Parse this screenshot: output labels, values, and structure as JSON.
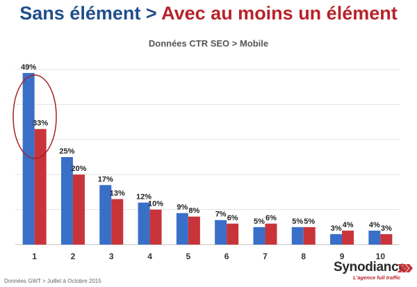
{
  "header": {
    "title_part1": "Sans élément",
    "title_separator": " > ",
    "title_part2": "Avec au moins un élément",
    "subtitle": "Données CTR SEO > Mobile"
  },
  "footnote": "Données GWT > Juillet à Octobre 2015",
  "logo": {
    "brand": "Synodiance",
    "tagline": "L'agence full traffic",
    "icon": "triple-chevron-icon"
  },
  "colors": {
    "series1": "#3a6fc8",
    "series2": "#c8343a",
    "title1": "#1f4e8c",
    "title2": "#b8222a",
    "highlight": "#a51e24"
  },
  "chart_data": {
    "type": "bar",
    "title": "Données CTR SEO > Mobile",
    "categories": [
      "1",
      "2",
      "3",
      "4",
      "5",
      "6",
      "7",
      "8",
      "9",
      "10"
    ],
    "series": [
      {
        "values": [
          49,
          25,
          17,
          12,
          9,
          7,
          5,
          5,
          3,
          4
        ],
        "labels": [
          "49%",
          "25%",
          "17%",
          "12%",
          "9%",
          "7%",
          "5%",
          "5%",
          "3%",
          "4%"
        ]
      },
      {
        "values": [
          33,
          20,
          13,
          10,
          8,
          6,
          6,
          5,
          4,
          3
        ],
        "labels": [
          "33%",
          "20%",
          "13%",
          "10%",
          "8%",
          "6%",
          "6%",
          "5%",
          "4%",
          "3%"
        ]
      }
    ],
    "xlabel": "",
    "ylabel": "",
    "ylim": [
      0,
      50
    ],
    "grid": true,
    "legend": "none",
    "annotation": "circle around position 1"
  }
}
